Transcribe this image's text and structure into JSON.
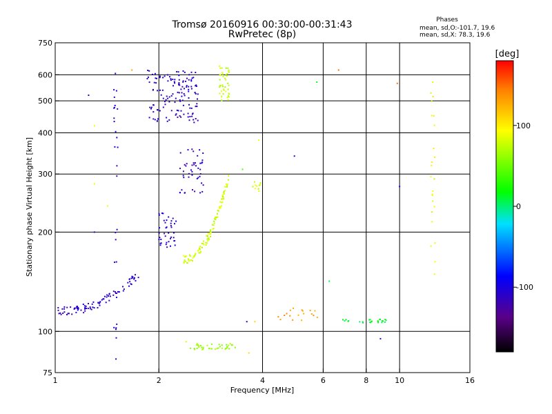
{
  "header": {
    "title_line1": "Tromsø 20160916 00:30:00-00:31:43",
    "title_line2": "RwPretec (8p)",
    "phases_title": "Phases",
    "phases_o": "mean, sd,O:-101.7, 19.6",
    "phases_x": "mean, sd,X:  78.3, 19.6"
  },
  "chart_data": {
    "type": "scatter",
    "xlabel": "Frequency [MHz]",
    "ylabel": "Stationary phase Virtual Height [km]",
    "x_scale": "log",
    "y_scale": "log",
    "xlim": [
      1,
      16
    ],
    "ylim": [
      75,
      750
    ],
    "x_ticks": [
      1,
      2,
      4,
      6,
      8,
      10,
      16
    ],
    "x_tick_labels": [
      "1",
      "2",
      "4",
      "6",
      "8",
      "10",
      "16"
    ],
    "y_ticks": [
      75,
      100,
      200,
      300,
      400,
      500,
      600,
      750
    ],
    "y_tick_labels": [
      "75",
      "100",
      "200",
      "300",
      "400",
      "500",
      "600",
      "750"
    ],
    "grid_x": [
      2,
      4,
      6,
      8,
      10
    ],
    "grid_y": [
      100,
      200,
      300,
      400,
      500,
      600
    ],
    "grid": true,
    "colorbar": {
      "label": "[deg]",
      "range": [
        -180,
        180
      ],
      "ticks": [
        100,
        0,
        -100
      ],
      "tick_labels": [
        "100",
        "0",
        "-100"
      ]
    },
    "clusters": [
      {
        "name": "O lower trace",
        "phase": -110,
        "x_range": [
          1.02,
          1.75
        ],
        "y": [
          115,
          150
        ],
        "shape": "curve",
        "n": 90
      },
      {
        "name": "O F2 trace",
        "phase": -110,
        "x_range": [
          1.85,
          2.6
        ],
        "y": [
          430,
          620
        ],
        "shape": "band",
        "n": 140
      },
      {
        "name": "O F1 trace",
        "phase": -110,
        "x_range": [
          2.0,
          2.25
        ],
        "y": [
          180,
          230
        ],
        "shape": "band",
        "n": 40
      },
      {
        "name": "O spread",
        "phase": -110,
        "x_range": [
          2.3,
          2.7
        ],
        "y": [
          260,
          360
        ],
        "shape": "band",
        "n": 45
      },
      {
        "name": "X F1 trace",
        "phase": 80,
        "x_range": [
          2.35,
          3.2
        ],
        "y": [
          165,
          300
        ],
        "shape": "curve",
        "n": 110
      },
      {
        "name": "X F2 column",
        "phase": 75,
        "x_range": [
          3.0,
          3.2
        ],
        "y": [
          500,
          640
        ],
        "shape": "band",
        "n": 45
      },
      {
        "name": "X lower band",
        "phase": 65,
        "x_range": [
          2.45,
          3.35
        ],
        "y": [
          88,
          92
        ],
        "shape": "band",
        "n": 40
      },
      {
        "name": "X 270 km",
        "phase": 80,
        "x_range": [
          3.75,
          3.95
        ],
        "y": [
          265,
          285
        ],
        "shape": "band",
        "n": 10
      },
      {
        "name": "Sporadic E 108 km",
        "phase": 130,
        "x_range": [
          4.4,
          5.8
        ],
        "y": [
          106,
          118
        ],
        "shape": "band",
        "n": 18
      },
      {
        "name": "Sporadic E cyan",
        "phase": 10,
        "x_range": [
          6.6,
          9.2
        ],
        "y": [
          106,
          109
        ],
        "shape": "band",
        "n": 25
      },
      {
        "name": "Column 1.5 MHz",
        "phase": -110,
        "x_range": [
          1.48,
          1.52
        ],
        "y": [
          82,
          650
        ],
        "shape": "column",
        "n": 28
      },
      {
        "name": "Column 12.5 MHz",
        "phase": 90,
        "x_range": [
          12.3,
          12.7
        ],
        "y": [
          140,
          660
        ],
        "shape": "column",
        "n": 24
      }
    ],
    "isolated_points": [
      {
        "x": 1.25,
        "y": 520,
        "phase": -110
      },
      {
        "x": 1.3,
        "y": 420,
        "phase": 90
      },
      {
        "x": 1.3,
        "y": 280,
        "phase": 90
      },
      {
        "x": 1.3,
        "y": 200,
        "phase": -110
      },
      {
        "x": 1.42,
        "y": 240,
        "phase": 90
      },
      {
        "x": 1.67,
        "y": 620,
        "phase": 130
      },
      {
        "x": 3.5,
        "y": 310,
        "phase": 40
      },
      {
        "x": 3.6,
        "y": 107,
        "phase": -110
      },
      {
        "x": 3.8,
        "y": 107,
        "phase": 110
      },
      {
        "x": 3.9,
        "y": 380,
        "phase": 90
      },
      {
        "x": 4.95,
        "y": 340,
        "phase": -110
      },
      {
        "x": 5.75,
        "y": 570,
        "phase": 15
      },
      {
        "x": 6.25,
        "y": 142,
        "phase": 10
      },
      {
        "x": 6.65,
        "y": 620,
        "phase": 150
      },
      {
        "x": 9.85,
        "y": 565,
        "phase": 150
      },
      {
        "x": 10.0,
        "y": 275,
        "phase": -110
      },
      {
        "x": 8.8,
        "y": 95,
        "phase": -110
      },
      {
        "x": 3.65,
        "y": 86,
        "phase": 110
      },
      {
        "x": 2.4,
        "y": 93,
        "phase": 80
      }
    ]
  }
}
